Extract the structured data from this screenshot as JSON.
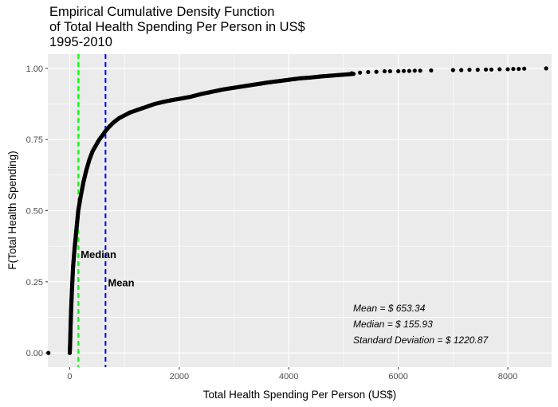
{
  "chart_data": {
    "type": "scatter",
    "title": [
      "Empirical Cumulative Density Function",
      "of Total Health Spending Per Person in US$",
      "1995-2010"
    ],
    "xlabel": "Total Health Spending Per Person (US$)",
    "ylabel": "F(Total Health Spending)",
    "xlim": [
      -400,
      8800
    ],
    "ylim": [
      -0.05,
      1.05
    ],
    "x_ticks": [
      0,
      2000,
      4000,
      6000,
      8000
    ],
    "x_tick_labels": [
      "0",
      "2000",
      "4000",
      "6000",
      "8000"
    ],
    "y_ticks": [
      0,
      0.25,
      0.5,
      0.75,
      1.0
    ],
    "y_tick_labels": [
      "0.00",
      "0.25",
      "0.50",
      "0.75",
      "1.00"
    ],
    "grid": true,
    "point_color": "#000000",
    "ecdf_points": [
      [
        -390,
        0.0
      ],
      [
        0,
        0.0
      ],
      [
        5,
        0.02
      ],
      [
        10,
        0.05
      ],
      [
        15,
        0.09
      ],
      [
        25,
        0.15
      ],
      [
        40,
        0.22
      ],
      [
        60,
        0.3
      ],
      [
        85,
        0.36
      ],
      [
        115,
        0.42
      ],
      [
        155.93,
        0.5
      ],
      [
        200,
        0.55
      ],
      [
        250,
        0.6
      ],
      [
        300,
        0.64
      ],
      [
        360,
        0.68
      ],
      [
        420,
        0.71
      ],
      [
        480,
        0.73
      ],
      [
        540,
        0.75
      ],
      [
        600,
        0.765
      ],
      [
        653.34,
        0.78
      ],
      [
        720,
        0.795
      ],
      [
        800,
        0.81
      ],
      [
        900,
        0.825
      ],
      [
        1000,
        0.835
      ],
      [
        1100,
        0.845
      ],
      [
        1250,
        0.855
      ],
      [
        1400,
        0.865
      ],
      [
        1550,
        0.875
      ],
      [
        1700,
        0.882
      ],
      [
        1850,
        0.888
      ],
      [
        2000,
        0.893
      ],
      [
        2200,
        0.9
      ],
      [
        2400,
        0.91
      ],
      [
        2600,
        0.918
      ],
      [
        2800,
        0.926
      ],
      [
        3000,
        0.932
      ],
      [
        3200,
        0.938
      ],
      [
        3400,
        0.944
      ],
      [
        3600,
        0.95
      ],
      [
        3800,
        0.955
      ],
      [
        4000,
        0.96
      ],
      [
        4200,
        0.965
      ],
      [
        4400,
        0.968
      ],
      [
        4600,
        0.972
      ],
      [
        4800,
        0.975
      ],
      [
        5000,
        0.978
      ],
      [
        5200,
        0.981
      ],
      [
        5400,
        0.983
      ],
      [
        5600,
        0.985
      ],
      [
        5800,
        0.987
      ],
      [
        6000,
        0.989
      ],
      [
        6200,
        0.99
      ],
      [
        6400,
        0.991
      ],
      [
        6600,
        0.992
      ],
      [
        6800,
        0.993
      ],
      [
        7000,
        0.994
      ],
      [
        7200,
        0.995
      ],
      [
        7400,
        0.996
      ],
      [
        7600,
        0.997
      ],
      [
        7800,
        0.998
      ],
      [
        8000,
        0.999
      ],
      [
        8300,
        0.9995
      ],
      [
        8700,
        1.0
      ]
    ],
    "isolated_points": [
      [
        5150,
        0.983
      ],
      [
        5300,
        0.985
      ],
      [
        5450,
        0.987
      ],
      [
        5600,
        0.988
      ],
      [
        5750,
        0.99
      ],
      [
        5850,
        0.99
      ],
      [
        6000,
        0.99
      ],
      [
        6100,
        0.991
      ],
      [
        6200,
        0.991
      ],
      [
        6300,
        0.992
      ],
      [
        6400,
        0.992
      ],
      [
        6600,
        0.993
      ],
      [
        7000,
        0.994
      ],
      [
        7150,
        0.994
      ],
      [
        7300,
        0.995
      ],
      [
        7450,
        0.995
      ],
      [
        7600,
        0.996
      ],
      [
        7700,
        0.996
      ],
      [
        7850,
        0.997
      ],
      [
        8000,
        0.997
      ],
      [
        8100,
        0.998
      ],
      [
        8200,
        0.998
      ],
      [
        8300,
        0.999
      ],
      [
        8700,
        1.0
      ]
    ],
    "vlines": [
      {
        "label": "Median",
        "x": 155.93,
        "color": "#00ff00"
      },
      {
        "label": "Mean",
        "x": 653.34,
        "color": "#0000ff"
      }
    ],
    "stats_annotation": [
      "Mean = $ 653.34",
      "Median = $ 155.93",
      "Standard Deviation = $ 1220.87"
    ]
  }
}
